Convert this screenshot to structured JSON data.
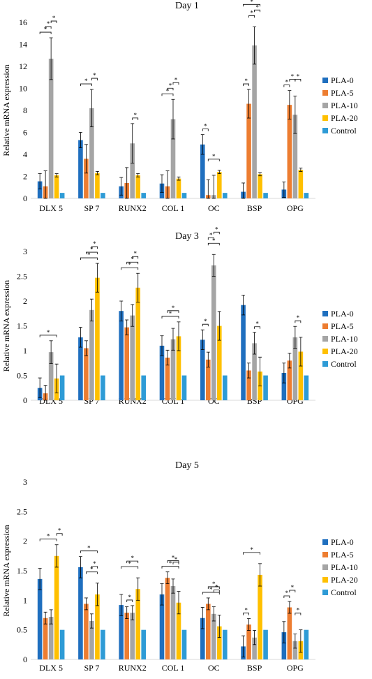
{
  "legend": [
    "PLA-0",
    "PLA-5",
    "PLA-10",
    "PLA-20",
    "Control"
  ],
  "colors": [
    "#1f6fbf",
    "#ed7d31",
    "#a5a5a5",
    "#ffc000",
    "#2e9bd6"
  ],
  "chart_data": [
    {
      "type": "bar",
      "title": "Day 1",
      "ylabel": "Relative mRNA expression",
      "ylim": [
        0,
        16
      ],
      "yticks": [
        "0",
        "2",
        "4",
        "6",
        "8",
        "10",
        "12",
        "14",
        "16"
      ],
      "categories": [
        "DLX 5",
        "SP 7",
        "RUNX2",
        "COL 1",
        "OC",
        "BSP",
        "OPG"
      ],
      "series": [
        {
          "name": "PLA-0",
          "values": [
            1.55,
            5.3,
            1.1,
            1.35,
            4.9,
            0.6,
            0.8
          ],
          "errors": [
            0.7,
            0.7,
            0.8,
            0.8,
            0.9,
            0.8,
            0.7
          ]
        },
        {
          "name": "PLA-5",
          "values": [
            1.1,
            3.6,
            1.4,
            1.1,
            0.3,
            8.6,
            8.5
          ],
          "errors": [
            1.4,
            1.3,
            1.4,
            1.4,
            1.4,
            1.3,
            1.3
          ]
        },
        {
          "name": "PLA-10",
          "values": [
            12.7,
            8.2,
            5.0,
            7.2,
            0.3,
            13.9,
            7.6
          ],
          "errors": [
            1.9,
            1.7,
            1.8,
            1.8,
            1.8,
            1.7,
            1.7
          ]
        },
        {
          "name": "PLA-20",
          "values": [
            2.1,
            2.3,
            2.1,
            1.8,
            2.4,
            2.2,
            2.6
          ],
          "errors": [
            0.15,
            0.15,
            0.15,
            0.15,
            0.15,
            0.15,
            0.15
          ]
        },
        {
          "name": "Control",
          "values": [
            0.5,
            0.5,
            0.5,
            0.5,
            0.5,
            0.5,
            0.5
          ],
          "errors": [
            0,
            0,
            0,
            0,
            0,
            0,
            0
          ]
        }
      ],
      "annotations": "* significance brackets between groups"
    },
    {
      "type": "bar",
      "title": "Day 3",
      "ylabel": "Relative mRNA expression",
      "ylim": [
        0,
        3
      ],
      "yticks": [
        "0",
        "0.5",
        "1",
        "1.5",
        "2",
        "2.5",
        "3"
      ],
      "categories": [
        "DLX 5",
        "SP 7",
        "RUNX2",
        "COL 1",
        "OC",
        "BSP",
        "OPG"
      ],
      "series": [
        {
          "name": "PLA-0",
          "values": [
            0.25,
            1.27,
            1.8,
            1.1,
            1.22,
            1.92,
            0.55
          ],
          "errors": [
            0.2,
            0.2,
            0.2,
            0.2,
            0.2,
            0.2,
            0.2
          ]
        },
        {
          "name": "PLA-5",
          "values": [
            0.14,
            1.05,
            1.47,
            0.86,
            0.82,
            0.6,
            0.8
          ],
          "errors": [
            0.16,
            0.15,
            0.15,
            0.15,
            0.15,
            0.15,
            0.15
          ]
        },
        {
          "name": "PLA-10",
          "values": [
            0.97,
            1.82,
            1.71,
            1.23,
            2.72,
            1.15,
            1.27
          ],
          "errors": [
            0.23,
            0.22,
            0.22,
            0.22,
            0.22,
            0.22,
            0.22
          ]
        },
        {
          "name": "PLA-20",
          "values": [
            0.44,
            2.47,
            2.27,
            1.29,
            1.5,
            0.58,
            0.98
          ],
          "errors": [
            0.29,
            0.29,
            0.29,
            0.29,
            0.29,
            0.29,
            0.29
          ]
        },
        {
          "name": "Control",
          "values": [
            0.5,
            0.5,
            0.5,
            0.5,
            0.5,
            0.5,
            0.5
          ],
          "errors": [
            0,
            0,
            0,
            0,
            0,
            0,
            0
          ]
        }
      ],
      "annotations": "* significance brackets between groups"
    },
    {
      "type": "bar",
      "title": "Day 5",
      "ylabel": "Relative mRNA expression",
      "ylim": [
        0,
        3
      ],
      "yticks": [
        "0",
        "0.5",
        "1",
        "1.5",
        "2",
        "2.5",
        "3"
      ],
      "categories": [
        "DLX 5",
        "SP 7",
        "RUNX2",
        "COL 1",
        "OC",
        "BSP",
        "OPG"
      ],
      "series": [
        {
          "name": "PLA-0",
          "values": [
            1.36,
            1.56,
            0.92,
            1.1,
            0.7,
            0.22,
            0.46
          ],
          "errors": [
            0.18,
            0.18,
            0.18,
            0.18,
            0.18,
            0.18,
            0.18
          ]
        },
        {
          "name": "PLA-5",
          "values": [
            0.7,
            0.94,
            0.79,
            1.38,
            0.94,
            0.59,
            0.88
          ],
          "errors": [
            0.1,
            0.1,
            0.1,
            0.1,
            0.1,
            0.1,
            0.1
          ]
        },
        {
          "name": "PLA-10",
          "values": [
            0.72,
            0.65,
            0.79,
            1.24,
            0.77,
            0.37,
            0.31
          ],
          "errors": [
            0.12,
            0.12,
            0.12,
            0.12,
            0.12,
            0.12,
            0.12
          ]
        },
        {
          "name": "PLA-20",
          "values": [
            1.75,
            1.1,
            1.19,
            0.96,
            0.56,
            1.43,
            0.31
          ],
          "errors": [
            0.19,
            0.19,
            0.19,
            0.19,
            0.19,
            0.19,
            0.19
          ]
        },
        {
          "name": "Control",
          "values": [
            0.5,
            0.5,
            0.5,
            0.5,
            0.5,
            0.5,
            0.5
          ],
          "errors": [
            0,
            0,
            0,
            0,
            0,
            0,
            0
          ]
        }
      ],
      "annotations": "* significance brackets between groups"
    }
  ]
}
